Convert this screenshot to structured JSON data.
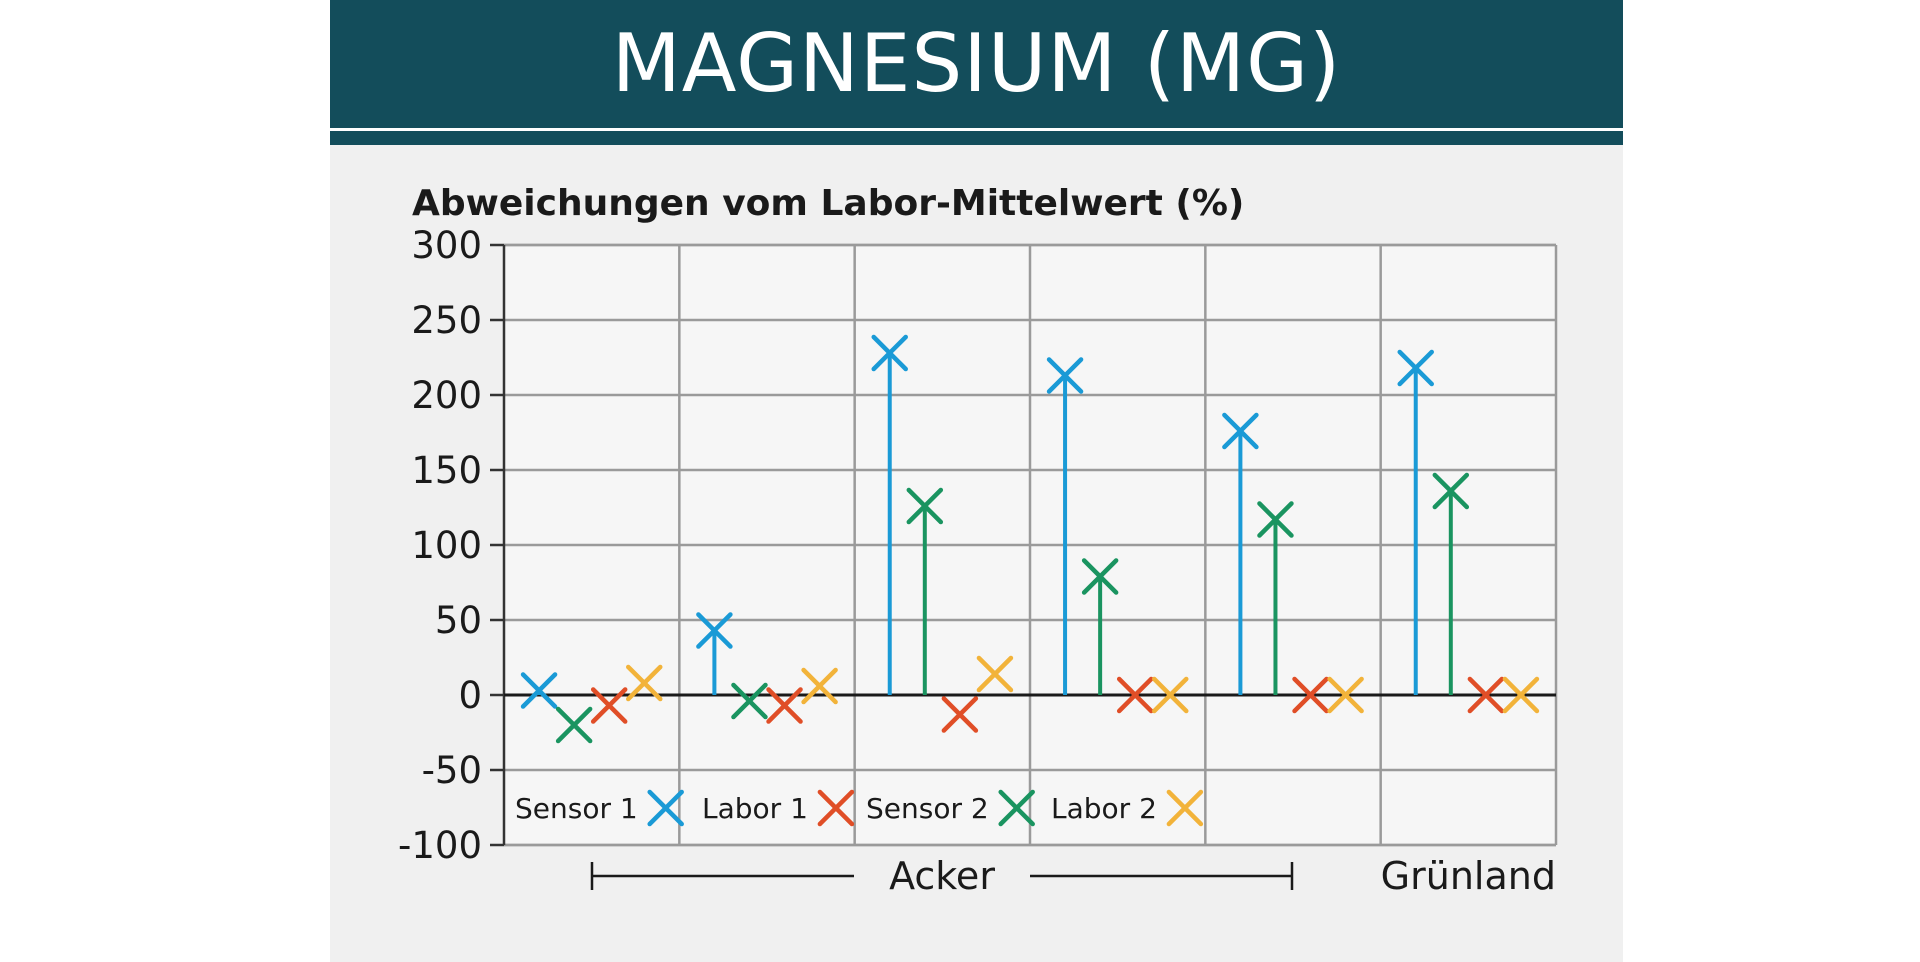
{
  "header": {
    "title": "MAGNESIUM (MG)"
  },
  "chart_data": {
    "type": "scatter",
    "ylabel": "Abweichungen vom Labor-Mittelwert (%)",
    "ylim": [
      -100,
      300
    ],
    "yticks": [
      "300",
      "250",
      "200",
      "150",
      "100",
      "50",
      "0",
      "-50",
      "-100"
    ],
    "ytick_values": [
      300,
      250,
      200,
      150,
      100,
      50,
      0,
      -50,
      -100
    ],
    "grid": true,
    "samples": 6,
    "groups": [
      {
        "label": "Acker",
        "samples": [
          1,
          5
        ]
      },
      {
        "label": "Grünland",
        "samples": [
          6,
          6
        ]
      }
    ],
    "series": [
      {
        "name": "Sensor 1",
        "color": "#1a9ad6",
        "marker": "x",
        "stem": true,
        "values": [
          3,
          43,
          228,
          213,
          176,
          218
        ]
      },
      {
        "name": "Sensor 2",
        "color": "#1a9460",
        "marker": "x",
        "stem": true,
        "values": [
          -20,
          -4,
          126,
          79,
          117,
          136
        ]
      },
      {
        "name": "Labor 1",
        "color": "#e04e27",
        "marker": "x",
        "stem": false,
        "values": [
          -7,
          -7,
          -13,
          0,
          0,
          0
        ]
      },
      {
        "name": "Labor 2",
        "color": "#f2b33a",
        "marker": "x",
        "stem": false,
        "values": [
          8,
          6,
          14,
          0,
          0,
          0
        ]
      }
    ],
    "legend_order": [
      "Sensor 1",
      "Labor 1",
      "Sensor 2",
      "Labor 2"
    ],
    "legend_position": "bottom-left"
  }
}
